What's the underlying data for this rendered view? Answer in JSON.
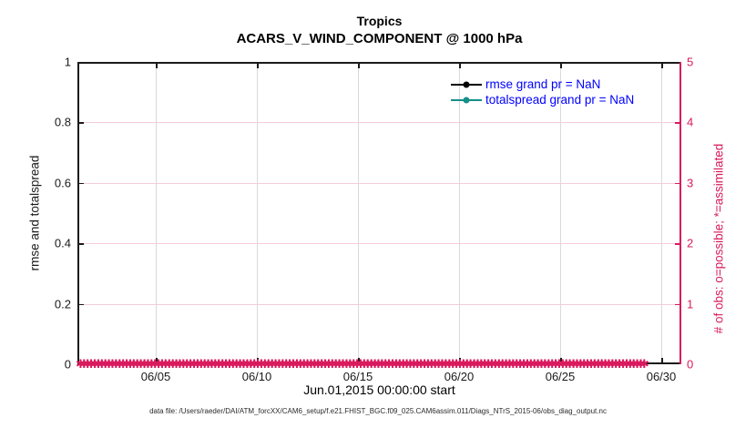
{
  "title": {
    "line1": "Tropics",
    "line2": "ACARS_V_WIND_COMPONENT @ 1000 hPa"
  },
  "axes": {
    "left": {
      "label": "rmse and totalspread",
      "ticks": [
        "0",
        "0.2",
        "0.4",
        "0.6",
        "0.8",
        "1"
      ],
      "color": "#1a1a1a"
    },
    "right": {
      "label": "# of obs: o=possible; *=assimilated",
      "ticks": [
        "0",
        "1",
        "2",
        "3",
        "4",
        "5"
      ],
      "color": "#d91a5e"
    },
    "x": {
      "label": "Jun.01,2015 00:00:00 start",
      "ticks": [
        "06/05",
        "06/10",
        "06/15",
        "06/20",
        "06/25",
        "06/30"
      ]
    }
  },
  "legend": [
    {
      "label": "rmse grand pr = NaN",
      "line_color": "#000000"
    },
    {
      "label": "totalspread grand pr = NaN",
      "line_color": "#178f89"
    }
  ],
  "legend_text_color": "#0000ff",
  "obs_markers": {
    "symbol": "✱",
    "color": "#d91a5e",
    "value_level": 0
  },
  "grid_colors": {
    "vertical": "#d9d9d9",
    "horizontal": "#f3cddd"
  },
  "footer": "data file: /Users/raeder/DAI/ATM_forcXX/CAM6_setup/f.e21.FHIST_BGC.f09_025.CAM6assim.011/Diags_NTrS_2015-06/obs_diag_output.nc",
  "chart_data": {
    "type": "line",
    "title": "Tropics",
    "subtitle": "ACARS_V_WIND_COMPONENT @ 1000 hPa",
    "xlabel": "Jun.01,2015 00:00:00 start",
    "ylabel_left": "rmse and totalspread",
    "ylabel_right": "# of obs: o=possible; *=assimilated",
    "x_range": [
      "2015-06-01",
      "2015-07-01"
    ],
    "x_tick_labels": [
      "06/05",
      "06/10",
      "06/15",
      "06/20",
      "06/25",
      "06/30"
    ],
    "ylim_left": [
      0,
      1
    ],
    "ylim_right": [
      0,
      5
    ],
    "grid": {
      "vertical": true,
      "horizontal": true
    },
    "legend_position": "top-right-inside, no box",
    "series": [
      {
        "name": "rmse grand pr = NaN",
        "axis": "left",
        "color": "#000000",
        "marker": "filled-circle",
        "values": "NaN (no curve drawn)"
      },
      {
        "name": "totalspread grand pr = NaN",
        "axis": "left",
        "color": "#178f89",
        "marker": "filled-circle",
        "values": "NaN (no curve drawn)"
      },
      {
        "name": "# of obs possible (o)",
        "axis": "right",
        "color": "#d91a5e",
        "marker": "o",
        "values_constant": 0,
        "note": "dense sub-daily markers at 0 spanning 06/01–07/01"
      },
      {
        "name": "# of obs assimilated (*)",
        "axis": "right",
        "color": "#d91a5e",
        "marker": "*",
        "values_constant": 0,
        "note": "dense sub-daily markers at 0 spanning 06/01–07/01"
      }
    ]
  }
}
